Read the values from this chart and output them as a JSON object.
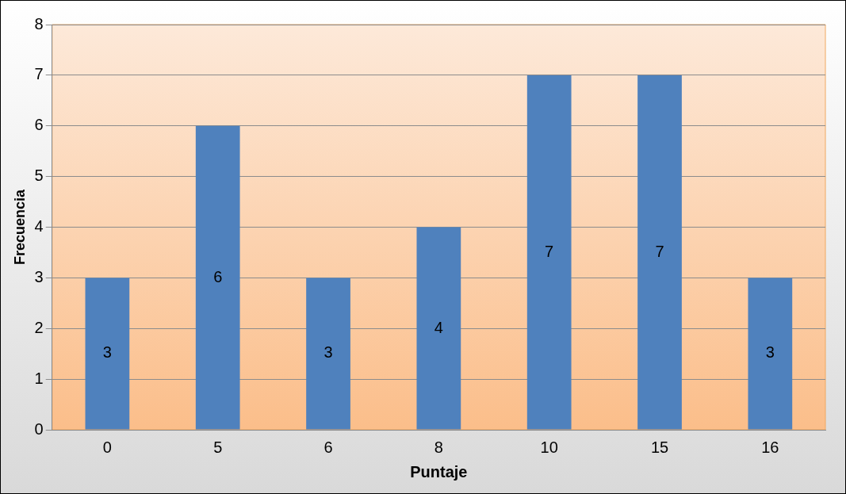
{
  "chart_data": {
    "type": "bar",
    "xlabel": "Puntaje",
    "ylabel": "Frecuencia",
    "categories": [
      "0",
      "5",
      "6",
      "8",
      "10",
      "15",
      "16"
    ],
    "values": [
      3,
      6,
      3,
      4,
      7,
      7,
      3
    ],
    "color": "#4f81bd",
    "ylim": [
      0,
      8
    ],
    "yticks": [
      0,
      1,
      2,
      3,
      4,
      5,
      6,
      7,
      8
    ],
    "grid": "y",
    "data_labels": true,
    "legend": false
  }
}
